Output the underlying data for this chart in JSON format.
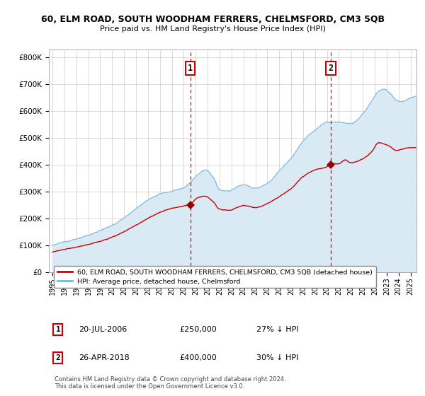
{
  "title": "60, ELM ROAD, SOUTH WOODHAM FERRERS, CHELMSFORD, CM3 5QB",
  "subtitle": "Price paid vs. HM Land Registry's House Price Index (HPI)",
  "ylabel_ticks": [
    "£0",
    "£100K",
    "£200K",
    "£300K",
    "£400K",
    "£500K",
    "£600K",
    "£700K",
    "£800K"
  ],
  "ytick_vals": [
    0,
    100000,
    200000,
    300000,
    400000,
    500000,
    600000,
    700000,
    800000
  ],
  "ylim": [
    0,
    830000
  ],
  "xlim_start": 1994.7,
  "xlim_end": 2025.5,
  "hpi_color": "#7ab8d9",
  "hpi_fill_color": "#daeaf5",
  "price_color": "#cc0000",
  "marker_color": "#990000",
  "dashed_line_color": "#ee0000",
  "grid_color": "#cccccc",
  "background_color": "#ffffff",
  "sale1_date": 2006.55,
  "sale1_price": 250000,
  "sale1_label": "1",
  "sale2_date": 2018.32,
  "sale2_price": 400000,
  "sale2_label": "2",
  "legend_property": "60, ELM ROAD, SOUTH WOODHAM FERRERS, CHELMSFORD, CM3 5QB (detached house)",
  "legend_hpi": "HPI: Average price, detached house, Chelmsford",
  "footnote": "Contains HM Land Registry data © Crown copyright and database right 2024.\nThis data is licensed under the Open Government Licence v3.0.",
  "xtick_years": [
    1995,
    1996,
    1997,
    1998,
    1999,
    2000,
    2001,
    2002,
    2003,
    2004,
    2005,
    2006,
    2007,
    2008,
    2009,
    2010,
    2011,
    2012,
    2013,
    2014,
    2015,
    2016,
    2017,
    2018,
    2019,
    2020,
    2021,
    2022,
    2023,
    2024,
    2025
  ]
}
